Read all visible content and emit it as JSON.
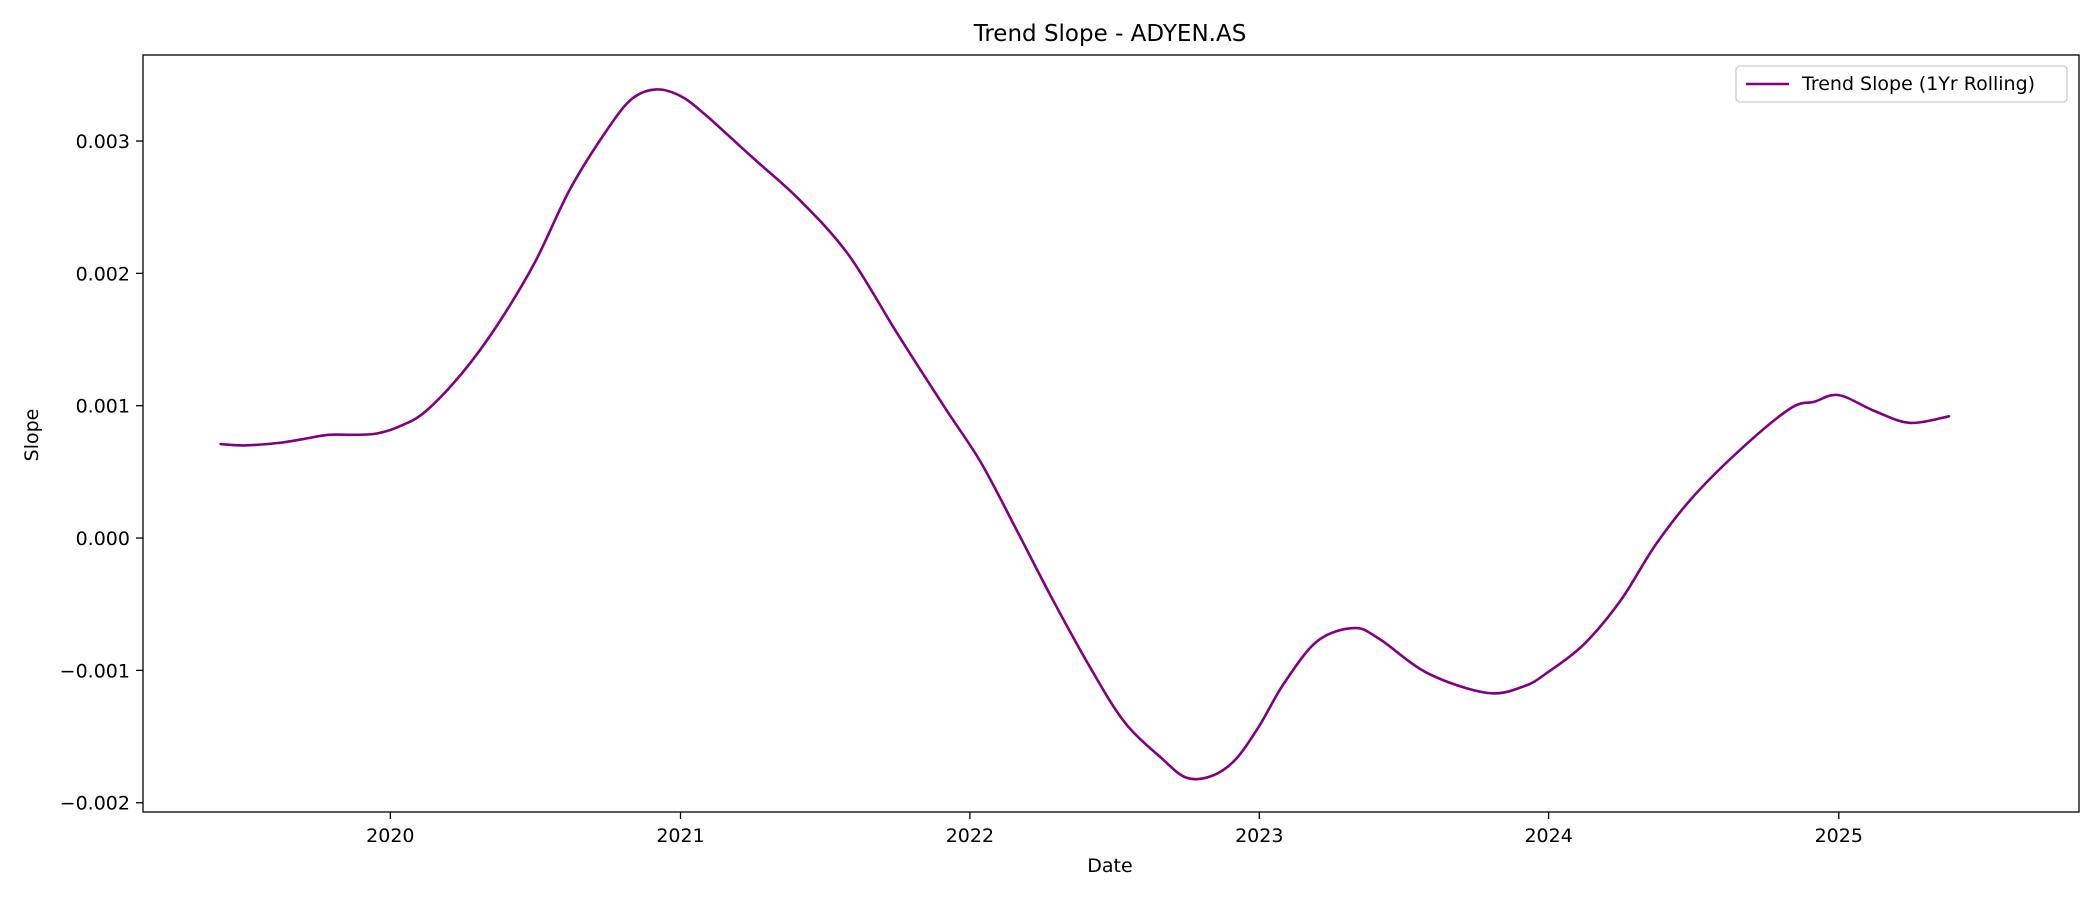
{
  "chart_data": {
    "type": "line",
    "title": "Trend Slope - ADYEN.AS",
    "xlabel": "Date",
    "ylabel": "Slope",
    "x_ticks": [
      "2020",
      "2021",
      "2022",
      "2023",
      "2024",
      "2025"
    ],
    "y_ticks": [
      "0.003",
      "0.002",
      "0.001",
      "0.000",
      "−0.001",
      "−0.002"
    ],
    "xlim": [
      "2019-02-23",
      "2025-10-31"
    ],
    "ylim": [
      -0.00207,
      0.00365
    ],
    "grid": false,
    "legend_position": "top-right",
    "series": [
      {
        "name": "Trend Slope (1Yr Rolling)",
        "color": "#800080",
        "points": [
          [
            "2019-06-01",
            0.00071
          ],
          [
            "2019-07-01",
            0.0007
          ],
          [
            "2019-08-15",
            0.00072
          ],
          [
            "2019-09-15",
            0.00075
          ],
          [
            "2019-10-15",
            0.00078
          ],
          [
            "2019-11-15",
            0.00078
          ],
          [
            "2019-12-15",
            0.00079
          ],
          [
            "2020-01-15",
            0.00085
          ],
          [
            "2020-02-15",
            0.00096
          ],
          [
            "2020-04-01",
            0.00125
          ],
          [
            "2020-05-15",
            0.00161
          ],
          [
            "2020-07-01",
            0.00208
          ],
          [
            "2020-08-15",
            0.00264
          ],
          [
            "2020-10-01",
            0.00309
          ],
          [
            "2020-11-01",
            0.00332
          ],
          [
            "2020-12-01",
            0.00339
          ],
          [
            "2021-01-01",
            0.00334
          ],
          [
            "2021-02-01",
            0.0032
          ],
          [
            "2021-04-01",
            0.00288
          ],
          [
            "2021-06-01",
            0.00255
          ],
          [
            "2021-08-01",
            0.00214
          ],
          [
            "2021-10-01",
            0.00155
          ],
          [
            "2021-12-01",
            0.00098
          ],
          [
            "2022-01-15",
            0.00057
          ],
          [
            "2022-03-01",
            6e-05
          ],
          [
            "2022-04-15",
            -0.00046
          ],
          [
            "2022-06-01",
            -0.00097
          ],
          [
            "2022-07-15",
            -0.00139
          ],
          [
            "2022-09-01",
            -0.00167
          ],
          [
            "2022-10-01",
            -0.00181
          ],
          [
            "2022-11-01",
            -0.0018
          ],
          [
            "2022-12-01",
            -0.00168
          ],
          [
            "2023-01-01",
            -0.00142
          ],
          [
            "2023-02-01",
            -0.0011
          ],
          [
            "2023-03-15",
            -0.00078
          ],
          [
            "2023-04-30",
            -0.00068
          ],
          [
            "2023-06-01",
            -0.00076
          ],
          [
            "2023-08-01",
            -0.00102
          ],
          [
            "2023-10-15",
            -0.00117
          ],
          [
            "2023-12-01",
            -0.00112
          ],
          [
            "2024-01-01",
            -0.00101
          ],
          [
            "2024-02-15",
            -0.0008
          ],
          [
            "2024-04-01",
            -0.00047
          ],
          [
            "2024-05-15",
            -5e-05
          ],
          [
            "2024-07-01",
            0.00031
          ],
          [
            "2024-09-01",
            0.00068
          ],
          [
            "2024-11-01",
            0.00098
          ],
          [
            "2024-12-01",
            0.00103
          ],
          [
            "2025-01-01",
            0.00108
          ],
          [
            "2025-02-15",
            0.00096
          ],
          [
            "2025-04-01",
            0.00087
          ],
          [
            "2025-05-20",
            0.00092
          ]
        ]
      }
    ]
  }
}
